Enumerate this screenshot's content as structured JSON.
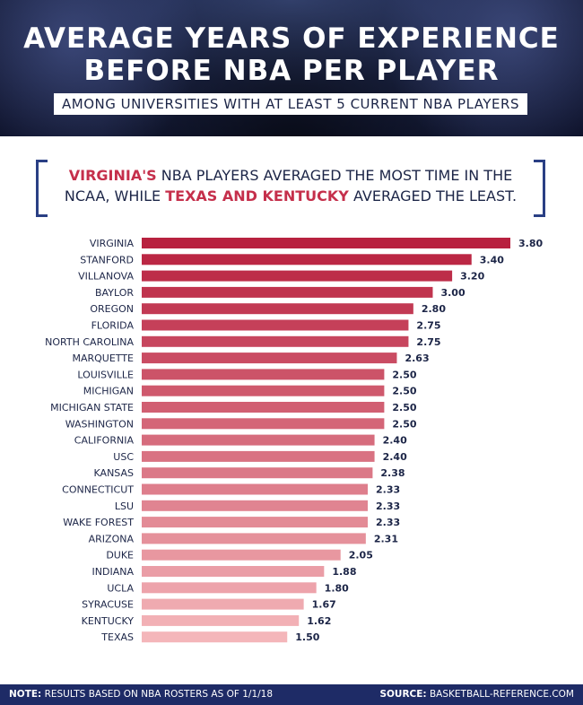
{
  "header": {
    "title_line1": "AVERAGE YEARS OF EXPERIENCE",
    "title_line2": "BEFORE NBA PER PLAYER",
    "subtitle": "AMONG UNIVERSITIES WITH AT LEAST 5 CURRENT NBA PLAYERS"
  },
  "callout": {
    "part1_highlight": "VIRGINIA'S",
    "part2": " NBA PLAYERS AVERAGED THE MOST TIME IN THE NCAA, WHILE ",
    "part3_highlight": "TEXAS AND KENTUCKY",
    "part4": " AVERAGED THE LEAST."
  },
  "chart_data": {
    "type": "bar",
    "orientation": "horizontal",
    "categories": [
      "VIRGINIA",
      "STANFORD",
      "VILLANOVA",
      "BAYLOR",
      "OREGON",
      "FLORIDA",
      "NORTH CAROLINA",
      "MARQUETTE",
      "LOUISVILLE",
      "MICHIGAN",
      "MICHIGAN STATE",
      "WASHINGTON",
      "CALIFORNIA",
      "USC",
      "KANSAS",
      "CONNECTICUT",
      "LSU",
      "WAKE FOREST",
      "ARIZONA",
      "DUKE",
      "INDIANA",
      "UCLA",
      "SYRACUSE",
      "KENTUCKY",
      "TEXAS"
    ],
    "values": [
      3.8,
      3.4,
      3.2,
      3.0,
      2.8,
      2.75,
      2.75,
      2.63,
      2.5,
      2.5,
      2.5,
      2.5,
      2.4,
      2.4,
      2.38,
      2.33,
      2.33,
      2.33,
      2.31,
      2.05,
      1.88,
      1.8,
      1.67,
      1.62,
      1.5
    ],
    "value_labels": [
      "3.80",
      "3.40",
      "3.20",
      "3.00",
      "2.80",
      "2.75",
      "2.75",
      "2.63",
      "2.50",
      "2.50",
      "2.50",
      "2.50",
      "2.40",
      "2.40",
      "2.38",
      "2.33",
      "2.33",
      "2.33",
      "2.31",
      "2.05",
      "1.88",
      "1.80",
      "1.67",
      "1.62",
      "1.50"
    ],
    "xlim": [
      0,
      3.8
    ],
    "grid": false,
    "colors": {
      "high": "#b8213f",
      "low": "#f4b6ba"
    }
  },
  "footer": {
    "note_label": "NOTE:",
    "note_text": " RESULTS BASED ON NBA ROSTERS AS OF 1/1/18",
    "source_label": "SOURCE:",
    "source_text": " BASKETBALL-REFERENCE.COM"
  }
}
